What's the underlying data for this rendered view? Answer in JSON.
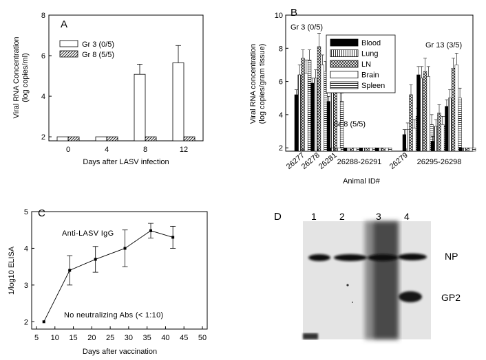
{
  "chart_data": [
    {
      "panel": "A",
      "type": "bar",
      "categories": [
        "0",
        "4",
        "8",
        "12"
      ],
      "series": [
        {
          "name": "Gr 3 (0/5)",
          "values": [
            2.0,
            2.0,
            5.08,
            5.65
          ],
          "errors": [
            0,
            0,
            0.5,
            0.85
          ],
          "pattern": "open"
        },
        {
          "name": "Gr 8 (5/5)",
          "values": [
            2.0,
            2.0,
            2.0,
            2.0
          ],
          "errors": [
            0,
            0,
            0,
            0
          ],
          "pattern": "diagonal"
        }
      ],
      "xlabel": "Days after LASV infection",
      "ylabel": "Viral RNA Concentration",
      "ylabel2": "(log copies/ml)",
      "ylim": [
        1.8,
        8
      ],
      "yticks": [
        "2",
        "4",
        "6",
        "8"
      ],
      "legend": "upper-left"
    },
    {
      "panel": "B",
      "type": "bar",
      "series_names": [
        "Blood",
        "Lung",
        "LN",
        "Brain",
        "Spleen"
      ],
      "groups": [
        {
          "label": "Gr 3 (0/5)",
          "animals": [
            {
              "id": "26277",
              "values": [
                5.2,
                6.4,
                7.4,
                6.5,
                7.3
              ],
              "errors": [
                0.3,
                0.6,
                0.5,
                0.8,
                0.6
              ]
            },
            {
              "id": "26278",
              "values": [
                5.9,
                6.2,
                8.1,
                7.0,
                6.6
              ],
              "errors": [
                0.3,
                0.5,
                0.8,
                0.6,
                0.6
              ]
            },
            {
              "id": "26281",
              "values": [
                4.8,
                5.9,
                6.8,
                7.8,
                4.8
              ],
              "errors": [
                0.3,
                0.5,
                0.8,
                0.7,
                0.5
              ]
            }
          ]
        },
        {
          "label": "Gr 8 (5/5)",
          "animals": [
            {
              "id": "26288",
              "values": [
                2.0,
                2.0,
                2.0,
                2.0,
                2.0
              ],
              "errors": [
                0,
                0,
                0,
                0,
                0
              ]
            },
            {
              "id": "26289",
              "values": [
                2.0,
                2.0,
                2.0,
                2.0,
                2.0
              ],
              "errors": [
                0,
                0,
                0,
                0,
                0
              ]
            },
            {
              "id": "26290",
              "values": [
                2.0,
                2.0,
                2.0,
                2.0,
                2.0
              ],
              "errors": [
                0,
                0,
                0,
                0,
                0
              ]
            },
            {
              "id": "26291",
              "values": [
                2.0,
                2.0,
                2.0,
                2.0,
                2.0
              ],
              "errors": [
                0,
                0,
                0,
                0,
                0
              ]
            }
          ]
        },
        {
          "label": "Gr 13 (3/5)",
          "animals": [
            {
              "id": "26279",
              "values": [
                2.8,
                3.1,
                5.2,
                3.2,
                3.9
              ],
              "errors": [
                0.3,
                0.4,
                0.6,
                0.5,
                0.5
              ]
            },
            {
              "id": "26295",
              "values": [
                6.4,
                6.2,
                6.6,
                6.3,
                3.4
              ],
              "errors": [
                0.5,
                0.7,
                0.8,
                0.6,
                0.6
              ]
            },
            {
              "id": "26296",
              "values": [
                2.4,
                3.3,
                4.1,
                3.4,
                3.3
              ],
              "errors": [
                0.3,
                0.4,
                0.5,
                0.5,
                0.6
              ]
            },
            {
              "id": "26297",
              "values": [
                4.5,
                5.0,
                6.8,
                7.0,
                5.0
              ],
              "errors": [
                0.4,
                0.5,
                0.6,
                0.7,
                0.6
              ]
            },
            {
              "id": "26298",
              "values": [
                2.0,
                2.0,
                2.0,
                2.0,
                2.0
              ],
              "errors": [
                0,
                0,
                0,
                0,
                0
              ]
            }
          ]
        }
      ],
      "tick_labels": [
        "26277",
        "26278",
        "26281",
        "26288-26291",
        "26279",
        "26295-26298"
      ],
      "xlabel": "Animal ID#",
      "ylabel": "Viral RNA concentration",
      "ylabel2": "(log copies/gram tissue)",
      "ylim": [
        1.8,
        10
      ],
      "yticks": [
        "2",
        "4",
        "6",
        "8",
        "10"
      ],
      "legend": "top-center"
    },
    {
      "panel": "C",
      "type": "line",
      "x": [
        7,
        14,
        21,
        29,
        36,
        42
      ],
      "y": [
        2.0,
        3.4,
        3.7,
        4.0,
        4.48,
        4.3
      ],
      "errors": [
        0,
        0.4,
        0.35,
        0.5,
        0.2,
        0.3
      ],
      "xlabel": "Days after vaccination",
      "ylabel": "1/log10 ELISA",
      "xlim": [
        5,
        50
      ],
      "ylim": [
        1.8,
        5
      ],
      "xticks": [
        "5",
        "10",
        "15",
        "20",
        "25",
        "30",
        "35",
        "40",
        "45",
        "50"
      ],
      "yticks": [
        "2",
        "3",
        "4",
        "5"
      ],
      "annotations": [
        "Anti-LASV IgG",
        "No neutralizing Abs (< 1:10)"
      ]
    }
  ],
  "blot": {
    "panel": "D",
    "lanes": [
      "1",
      "2",
      "3",
      "4"
    ],
    "bands": [
      "NP",
      "GP2"
    ]
  }
}
